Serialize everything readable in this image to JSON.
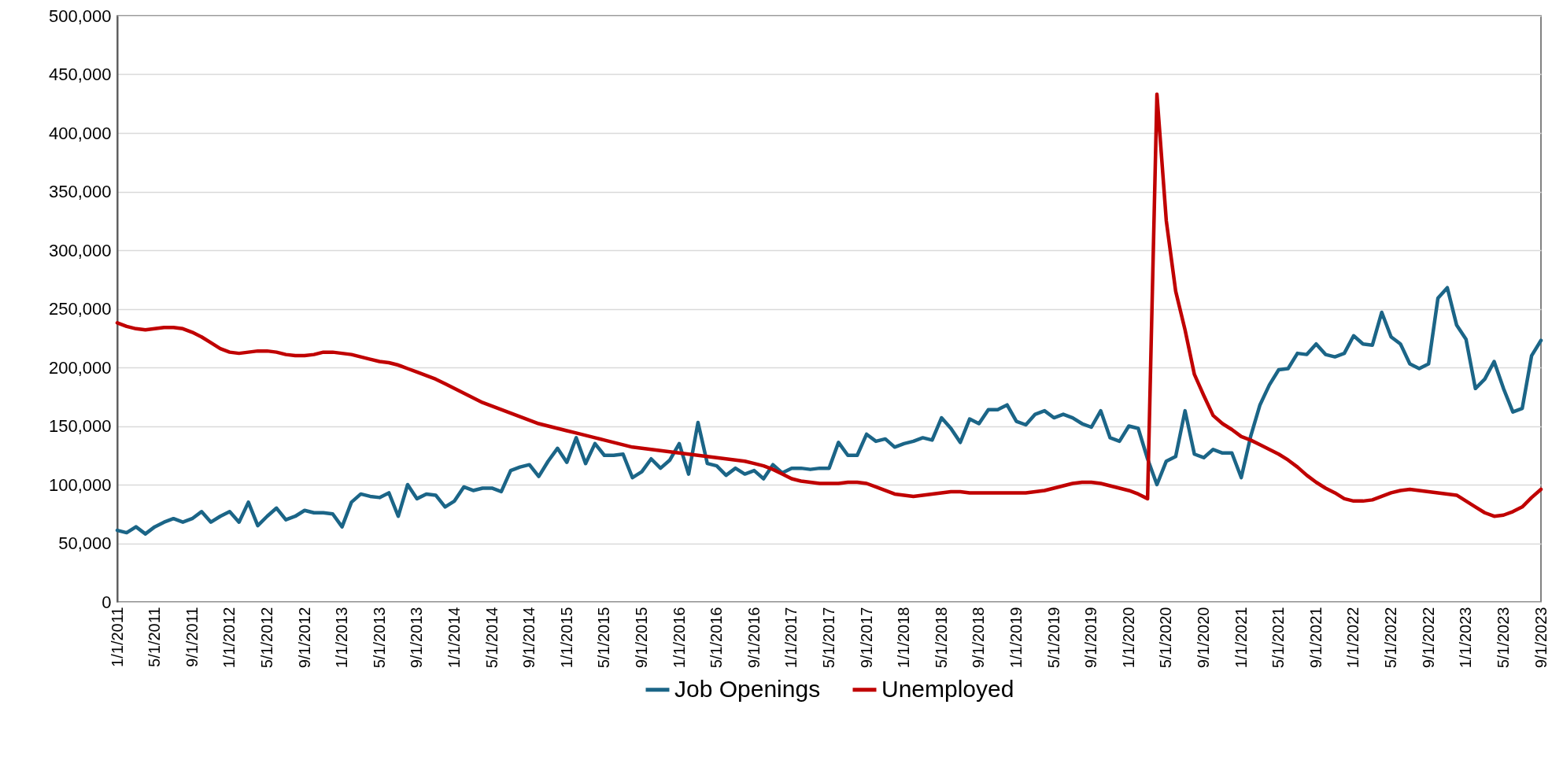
{
  "chart_data": {
    "type": "line",
    "categories": [
      "1/1/2011",
      null,
      null,
      null,
      "5/1/2011",
      null,
      null,
      null,
      "9/1/2011",
      null,
      null,
      null,
      "1/1/2012",
      null,
      null,
      null,
      "5/1/2012",
      null,
      null,
      null,
      "9/1/2012",
      null,
      null,
      null,
      "1/1/2013",
      null,
      null,
      null,
      "5/1/2013",
      null,
      null,
      null,
      "9/1/2013",
      null,
      null,
      null,
      "1/1/2014",
      null,
      null,
      null,
      "5/1/2014",
      null,
      null,
      null,
      "9/1/2014",
      null,
      null,
      null,
      "1/1/2015",
      null,
      null,
      null,
      "5/1/2015",
      null,
      null,
      null,
      "9/1/2015",
      null,
      null,
      null,
      "1/1/2016",
      null,
      null,
      null,
      "5/1/2016",
      null,
      null,
      null,
      "9/1/2016",
      null,
      null,
      null,
      "1/1/2017",
      null,
      null,
      null,
      "5/1/2017",
      null,
      null,
      null,
      "9/1/2017",
      null,
      null,
      null,
      "1/1/2018",
      null,
      null,
      null,
      "5/1/2018",
      null,
      null,
      null,
      "9/1/2018",
      null,
      null,
      null,
      "1/1/2019",
      null,
      null,
      null,
      "5/1/2019",
      null,
      null,
      null,
      "9/1/2019",
      null,
      null,
      null,
      "1/1/2020",
      null,
      null,
      null,
      "5/1/2020",
      null,
      null,
      null,
      "9/1/2020",
      null,
      null,
      null,
      "1/1/2021",
      null,
      null,
      null,
      "5/1/2021",
      null,
      null,
      null,
      "9/1/2021",
      null,
      null,
      null,
      "1/1/2022",
      null,
      null,
      null,
      "5/1/2022",
      null,
      null,
      null,
      "9/1/2022",
      null,
      null,
      null,
      "1/1/2023",
      null,
      null,
      null,
      "5/1/2023",
      null,
      null,
      null,
      "9/1/2023"
    ],
    "series": [
      {
        "name": "Job Openings",
        "color": "#1b6587",
        "values": [
          61000,
          59000,
          64000,
          58000,
          64000,
          68000,
          71000,
          68000,
          71000,
          77000,
          68000,
          73000,
          77000,
          68000,
          85000,
          65000,
          73000,
          80000,
          70000,
          73000,
          78000,
          76000,
          76000,
          75000,
          64000,
          85000,
          92000,
          90000,
          89000,
          93000,
          73000,
          100000,
          88000,
          92000,
          91000,
          81000,
          86000,
          98000,
          95000,
          97000,
          97000,
          94000,
          112000,
          115000,
          117000,
          107000,
          120000,
          131000,
          119000,
          140000,
          118000,
          135000,
          125000,
          125000,
          126000,
          106000,
          111000,
          122000,
          114000,
          121000,
          135000,
          109000,
          153000,
          118000,
          116000,
          108000,
          114000,
          109000,
          112000,
          105000,
          117000,
          110000,
          114000,
          114000,
          113000,
          114000,
          114000,
          136000,
          125000,
          125000,
          143000,
          137000,
          139000,
          132000,
          135000,
          137000,
          140000,
          138000,
          157000,
          148000,
          136000,
          156000,
          152000,
          164000,
          164000,
          168000,
          154000,
          151000,
          160000,
          163000,
          157000,
          160000,
          157000,
          152000,
          149000,
          163000,
          140000,
          137000,
          150000,
          148000,
          122000,
          100000,
          120000,
          124000,
          163000,
          126000,
          123000,
          130000,
          127000,
          127000,
          106000,
          141000,
          168000,
          185000,
          198000,
          199000,
          212000,
          211000,
          220000,
          211000,
          209000,
          212000,
          227000,
          220000,
          219000,
          247000,
          226000,
          220000,
          203000,
          199000,
          203000,
          259000,
          268000,
          236000,
          224000,
          182000,
          190000,
          205000,
          182000,
          162000,
          165000,
          210000,
          223000
        ]
      },
      {
        "name": "Unemployed",
        "color": "#c00000",
        "values": [
          238000,
          235000,
          233000,
          232000,
          233000,
          234000,
          234000,
          233000,
          230000,
          226000,
          221000,
          216000,
          213000,
          212000,
          213000,
          214000,
          214000,
          213000,
          211000,
          210000,
          210000,
          211000,
          213000,
          213000,
          212000,
          211000,
          209000,
          207000,
          205000,
          204000,
          202000,
          199000,
          196000,
          193000,
          190000,
          186000,
          182000,
          178000,
          174000,
          170000,
          167000,
          164000,
          161000,
          158000,
          155000,
          152000,
          150000,
          148000,
          146000,
          144000,
          142000,
          140000,
          138000,
          136000,
          134000,
          132000,
          131000,
          130000,
          129000,
          128000,
          127000,
          126000,
          125000,
          124000,
          123000,
          122000,
          121000,
          120000,
          118000,
          116000,
          113000,
          109000,
          105000,
          103000,
          102000,
          101000,
          101000,
          101000,
          102000,
          102000,
          101000,
          98000,
          95000,
          92000,
          91000,
          90000,
          91000,
          92000,
          93000,
          94000,
          94000,
          93000,
          93000,
          93000,
          93000,
          93000,
          93000,
          93000,
          94000,
          95000,
          97000,
          99000,
          101000,
          102000,
          102000,
          101000,
          99000,
          97000,
          95000,
          92000,
          88000,
          433000,
          325000,
          265000,
          232000,
          194000,
          176000,
          159000,
          152000,
          147000,
          141000,
          138000,
          134000,
          130000,
          126000,
          121000,
          115000,
          108000,
          102000,
          97000,
          93000,
          88000,
          86000,
          86000,
          87000,
          90000,
          93000,
          95000,
          96000,
          95000,
          94000,
          93000,
          92000,
          91000,
          86000,
          81000,
          76000,
          73000,
          74000,
          77000,
          81000,
          89000,
          96000
        ]
      }
    ],
    "ylim": [
      0,
      500000
    ],
    "yticks": [
      0,
      {
        "value": 50000,
        "label": "50,000"
      },
      {
        "value": 100000,
        "label": "100,000"
      },
      {
        "value": 150000,
        "label": "150,000"
      },
      {
        "value": 200000,
        "label": "200,000"
      },
      {
        "value": 250000,
        "label": "250,000"
      },
      {
        "value": 300000,
        "label": "300,000"
      },
      {
        "value": 350000,
        "label": "350,000"
      },
      {
        "value": 400000,
        "label": "400,000"
      },
      {
        "value": 450000,
        "label": "450,000"
      },
      {
        "value": 500000,
        "label": "500,000"
      }
    ],
    "grid": "y",
    "legend": "bottom",
    "line_style": "solid",
    "marker": "none"
  }
}
